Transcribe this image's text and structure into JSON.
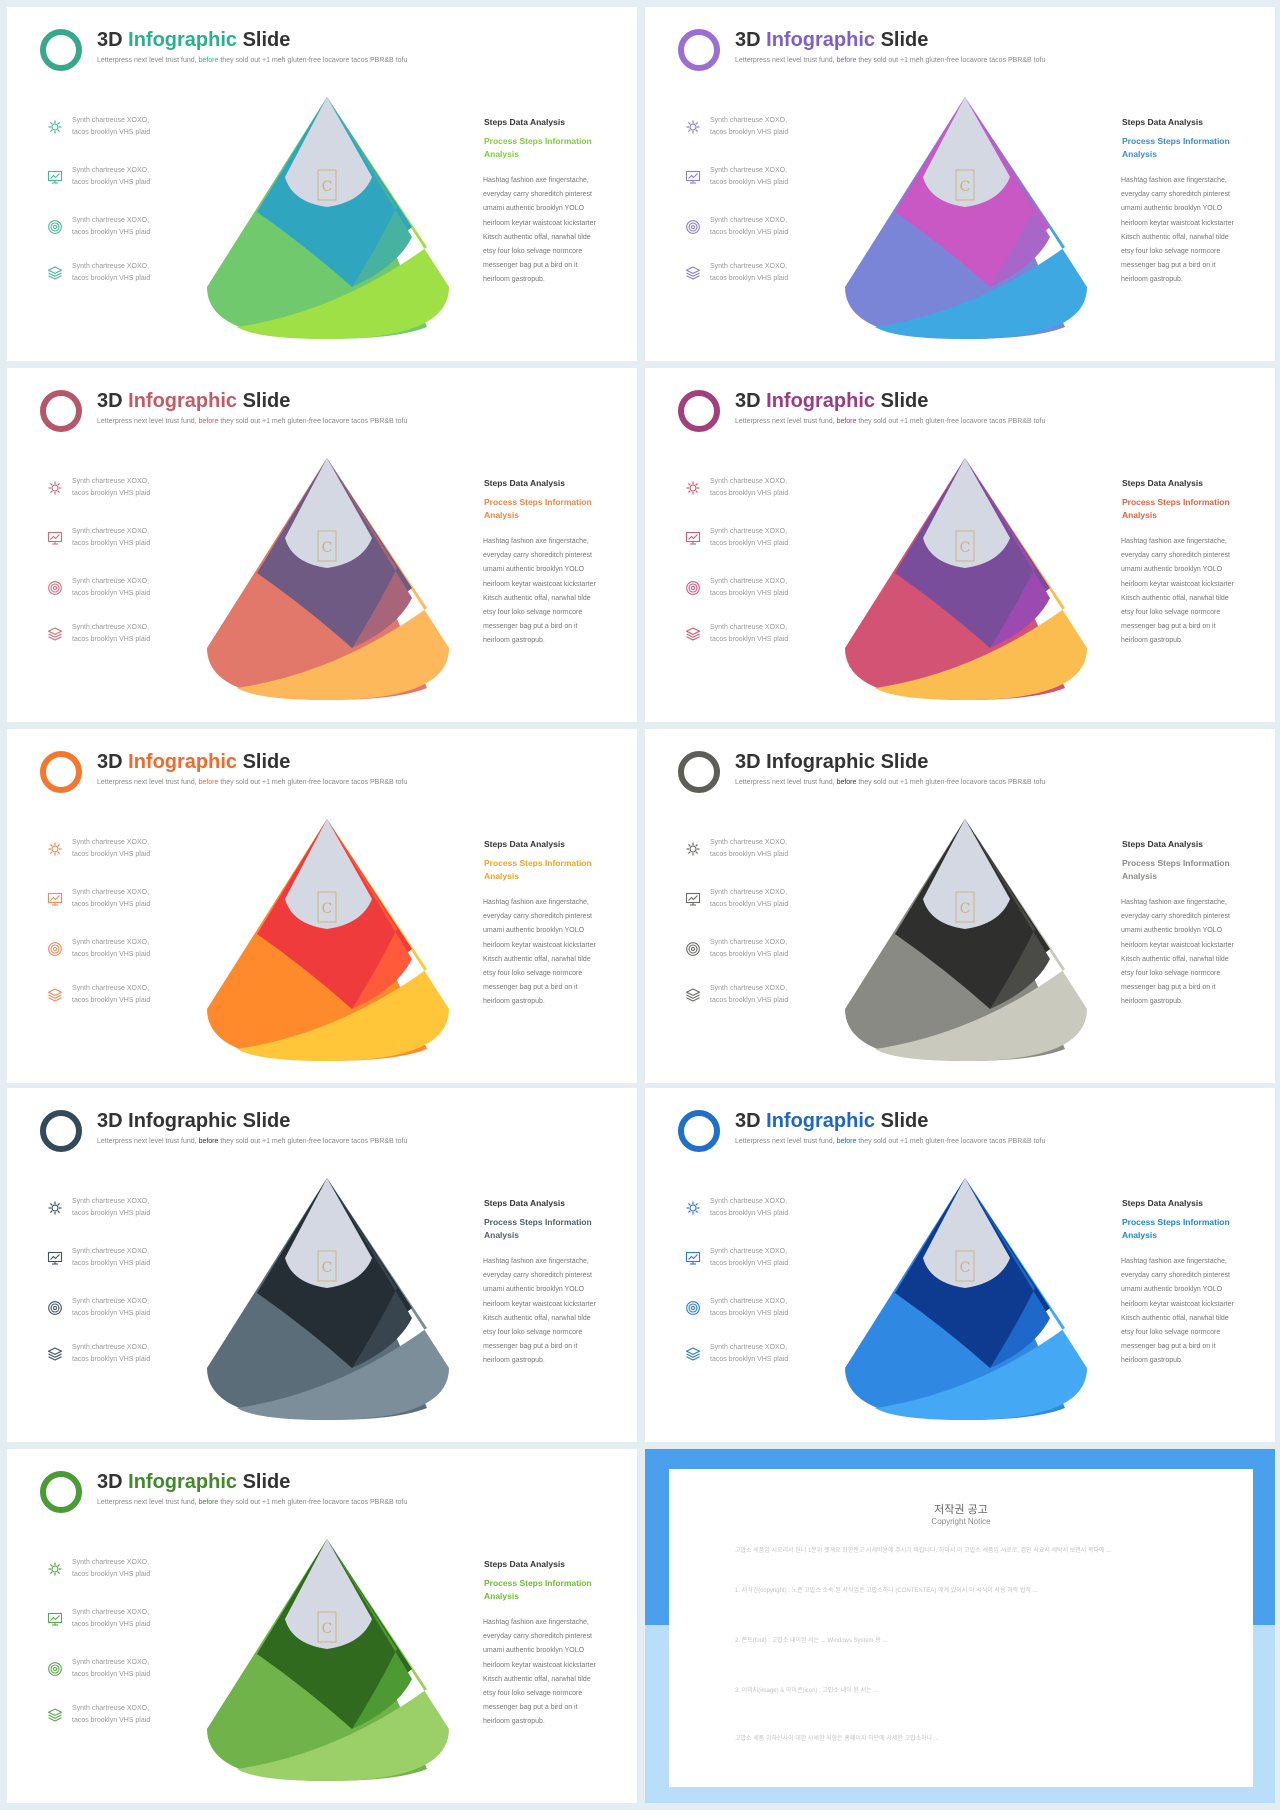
{
  "slides": [
    {
      "title_pre": "3D",
      "title_accent": "Infographic",
      "title_post": "Slide",
      "subtitle_pre": "Letterpress next level trust fund, ",
      "subtitle_hl": "before",
      "subtitle_post": " they sold out +1 meh gluten-free locavore tacos PBR&B tofu",
      "accent": "#2bb08f",
      "ring": "#3aa78a",
      "icon_color": "#4ab69a",
      "sub_color": "#7dcc3d",
      "colors": [
        "#71c96e",
        "#9fe046",
        "#2fa5bf",
        "#48b2a1",
        "#d3d8e2"
      ]
    },
    {
      "title_pre": "3D",
      "title_accent": "Infographic",
      "title_post": "Slide",
      "subtitle_pre": "Letterpress next level trust fund, ",
      "subtitle_hl": "before",
      "subtitle_post": " they sold out +1 meh gluten-free locavore tacos PBR&B tofu",
      "accent": "#7e5fc4",
      "ring": "#9b6fd2",
      "icon_color": "#8d7cd1",
      "sub_color": "#3b88d6",
      "colors": [
        "#7b85d8",
        "#3ea8e2",
        "#c957c4",
        "#a866c9",
        "#d3d8e2"
      ]
    },
    {
      "title_pre": "3D",
      "title_accent": "Infographic",
      "title_post": "Slide",
      "subtitle_pre": "Letterpress next level trust fund, ",
      "subtitle_hl": "before",
      "subtitle_post": " they sold out +1 meh gluten-free locavore tacos PBR&B tofu",
      "accent": "#c45a65",
      "ring": "#b5566a",
      "icon_color": "#cf6d7a",
      "sub_color": "#f0833d",
      "colors": [
        "#e2786a",
        "#fdb85c",
        "#6e5a82",
        "#a8657a",
        "#d3d8e2"
      ]
    },
    {
      "title_pre": "3D",
      "title_accent": "Infographic",
      "title_post": "Slide",
      "subtitle_pre": "Letterpress next level trust fund, ",
      "subtitle_hl": "before",
      "subtitle_post": " they sold out +1 meh gluten-free locavore tacos PBR&B tofu",
      "accent": "#9c3c86",
      "ring": "#a2407d",
      "icon_color": "#d05a74",
      "sub_color": "#e0603e",
      "colors": [
        "#d25374",
        "#fbbd4f",
        "#7a4d9a",
        "#9c4ab2",
        "#d3d8e2"
      ]
    },
    {
      "title_pre": "3D",
      "title_accent": "Infographic",
      "title_post": "Slide",
      "subtitle_pre": "Letterpress next level trust fund, ",
      "subtitle_hl": "before",
      "subtitle_post": " they sold out +1 meh gluten-free locavore tacos PBR&B tofu",
      "accent": "#f06a2a",
      "ring": "#f4772f",
      "icon_color": "#f08a5a",
      "sub_color": "#f6a21e",
      "colors": [
        "#ff8a2c",
        "#ffc63a",
        "#ef3b3b",
        "#ff5b3a",
        "#d3d8e2"
      ]
    },
    {
      "title_pre": "3D",
      "title_accent": "Infographic",
      "title_post": "Slide",
      "subtitle_pre": "Letterpress next level trust fund, ",
      "subtitle_hl": "before",
      "subtitle_post": " they sold out +1 meh gluten-free locavore tacos PBR&B tofu",
      "accent": "#333333",
      "ring": "#5e5e58",
      "icon_color": "#6b6b65",
      "sub_color": "#8a8a86",
      "colors": [
        "#8a8a84",
        "#c9c9bd",
        "#2f302e",
        "#4a4a46",
        "#d3d8e2"
      ]
    },
    {
      "title_pre": "3D",
      "title_accent": "Infographic",
      "title_post": "Slide",
      "subtitle_pre": "Letterpress next level trust fund, ",
      "subtitle_hl": "before",
      "subtitle_post": " they sold out +1 meh gluten-free locavore tacos PBR&B tofu",
      "accent": "#333333",
      "ring": "#34495a",
      "icon_color": "#3f5260",
      "sub_color": "#4e5f6c",
      "colors": [
        "#5b6d79",
        "#7c8e99",
        "#252e35",
        "#38454f",
        "#d3d8e2"
      ]
    },
    {
      "title_pre": "3D",
      "title_accent": "Infographic",
      "title_post": "Slide",
      "subtitle_pre": "Letterpress next level trust fund, ",
      "subtitle_hl": "before",
      "subtitle_post": " they sold out +1 meh gluten-free locavore tacos PBR&B tofu",
      "accent": "#1d66c4",
      "ring": "#1f6fcb",
      "icon_color": "#2b7ad3",
      "sub_color": "#1a86d8",
      "colors": [
        "#2f88e2",
        "#44a8f4",
        "#0e3b8f",
        "#1d68c8",
        "#d3d8e2"
      ]
    },
    {
      "title_pre": "3D",
      "title_accent": "Infographic",
      "title_post": "Slide",
      "subtitle_pre": "Letterpress next level trust fund, ",
      "subtitle_hl": "before",
      "subtitle_post": " they sold out +1 meh gluten-free locavore tacos PBR&B tofu",
      "accent": "#3f8a2c",
      "ring": "#4a9a36",
      "icon_color": "#5aa84a",
      "sub_color": "#6bbf2f",
      "colors": [
        "#6fb34a",
        "#9bd069",
        "#2f6a1e",
        "#4d9a32",
        "#d3d8e2"
      ]
    }
  ],
  "items": [
    {
      "icon": "gear-icon",
      "line1": "Synth chartreuse XOXO,",
      "line2": "tacos brooklyn VHS plaid"
    },
    {
      "icon": "monitor-chart-icon",
      "line1": "Synth chartreuse XOXO,",
      "line2": "tacos brooklyn VHS plaid"
    },
    {
      "icon": "target-icon",
      "line1": "Synth chartreuse XOXO,",
      "line2": "tacos brooklyn VHS plaid"
    },
    {
      "icon": "layers-icon",
      "line1": "Synth chartreuse XOXO,",
      "line2": "tacos brooklyn VHS plaid"
    }
  ],
  "right_panel": {
    "heading": "Steps Data Analysis",
    "sub1": "Process Steps Information",
    "sub2": "Analysis",
    "body": [
      "Hashtag fashion axe fingerstache,",
      "everyday carry shoreditch pinterest",
      "umami authentic brooklyn YOLO",
      "heirloom keytar waistcoat kickstarter",
      "Kitsch authentic offal, narwhal tilde",
      "etsy four loko selvage normcore",
      "messenger bag put a bird on it",
      "heirloom gastropub."
    ]
  },
  "copyright": {
    "title": "저작권 공고",
    "subtitle": "Copyright Notice",
    "paragraphs": [
      "고맙소 세품입 시오리서 헌니 1분위 햇게요 화한랜고 시세비용에 주시기 바랍니다. 하마서 이 고맙소 세품입 서로로, 겸인 사요서 세탁서 보면서 목파에 ...",
      "1. 서식간(copyright) : 노즌 고맙소 소속 된 서식업은 고맙소하나 (CONTENTEA) 에게 있어서 이 서식이 사용 허락 법적 ...",
      "2. 폰트(font) : 고맙소 내이된 서는 ... Windows System 용 ...",
      "3. 이미지(image) & 아이콘(icon) : 고맙소 내이 된 서는 ...",
      "고맙소 세품 위하신사이 대한 사세한 사항은 홈페이지 하단에 사세한 고맙소하나 ..."
    ]
  }
}
